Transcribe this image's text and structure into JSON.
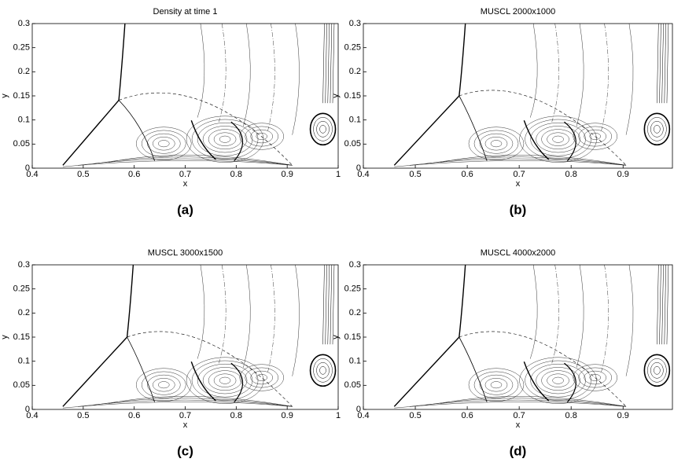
{
  "chart_data": [
    {
      "type": "contour",
      "title": "Density at time 1",
      "xlabel": "x",
      "ylabel": "y",
      "caption": "(a)",
      "xlim": [
        0.4,
        1
      ],
      "ylim": [
        0,
        0.3
      ],
      "xticks": [
        0.4,
        0.5,
        0.6,
        0.7,
        0.8,
        0.9,
        1
      ],
      "yticks": [
        0,
        0.05,
        0.1,
        0.15,
        0.2,
        0.25,
        0.3
      ]
    },
    {
      "type": "contour",
      "title": "MUSCL 2000x1000",
      "xlabel": "x",
      "ylabel": "y",
      "caption": "(b)",
      "xlim": [
        0.4,
        0.995
      ],
      "ylim": [
        0,
        0.3
      ],
      "xticks": [
        0.4,
        0.5,
        0.6,
        0.7,
        0.8,
        0.9
      ],
      "yticks": [
        0,
        0.05,
        0.1,
        0.15,
        0.2,
        0.25,
        0.3
      ]
    },
    {
      "type": "contour",
      "title": "MUSCL 3000x1500",
      "xlabel": "x",
      "ylabel": "y",
      "caption": "(c)",
      "xlim": [
        0.4,
        1
      ],
      "ylim": [
        0,
        0.3
      ],
      "xticks": [
        0.4,
        0.5,
        0.6,
        0.7,
        0.8,
        0.9,
        1
      ],
      "yticks": [
        0,
        0.05,
        0.1,
        0.15,
        0.2,
        0.25,
        0.3
      ]
    },
    {
      "type": "contour",
      "title": "MUSCL 4000x2000",
      "xlabel": "x",
      "ylabel": "y",
      "caption": "(d)",
      "xlim": [
        0.4,
        0.995
      ],
      "ylim": [
        0,
        0.3
      ],
      "xticks": [
        0.4,
        0.5,
        0.6,
        0.7,
        0.8,
        0.9
      ],
      "yticks": [
        0,
        0.05,
        0.1,
        0.15,
        0.2,
        0.25,
        0.3
      ]
    }
  ]
}
